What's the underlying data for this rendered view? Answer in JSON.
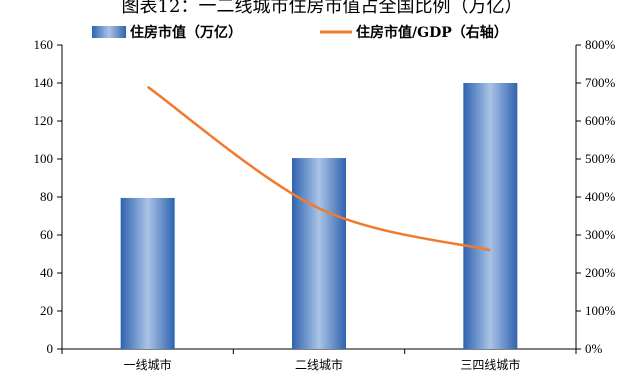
{
  "title": "图表12：一二线城市住房市值占全国比例（万亿）",
  "chart_data": {
    "type": "bar",
    "categories": [
      "一线城市",
      "二线城市",
      "三四线城市"
    ],
    "series": [
      {
        "name": "住房市值（万亿）",
        "type": "bar",
        "axis": "left",
        "values": [
          79.5,
          100.5,
          140
        ]
      },
      {
        "name": "住房市值/GDP（右轴）",
        "type": "line",
        "axis": "right",
        "values": [
          690,
          370,
          260
        ]
      }
    ],
    "y_left": {
      "min": 0,
      "max": 160,
      "step": 20
    },
    "y_right": {
      "min": 0,
      "max": 800,
      "step": 100,
      "suffix": "%"
    },
    "legend": "top-center",
    "grid": false,
    "colors": {
      "bar_dark": "#2f63b0",
      "bar_light": "#aac3e6",
      "line": "#f07b2e"
    }
  }
}
